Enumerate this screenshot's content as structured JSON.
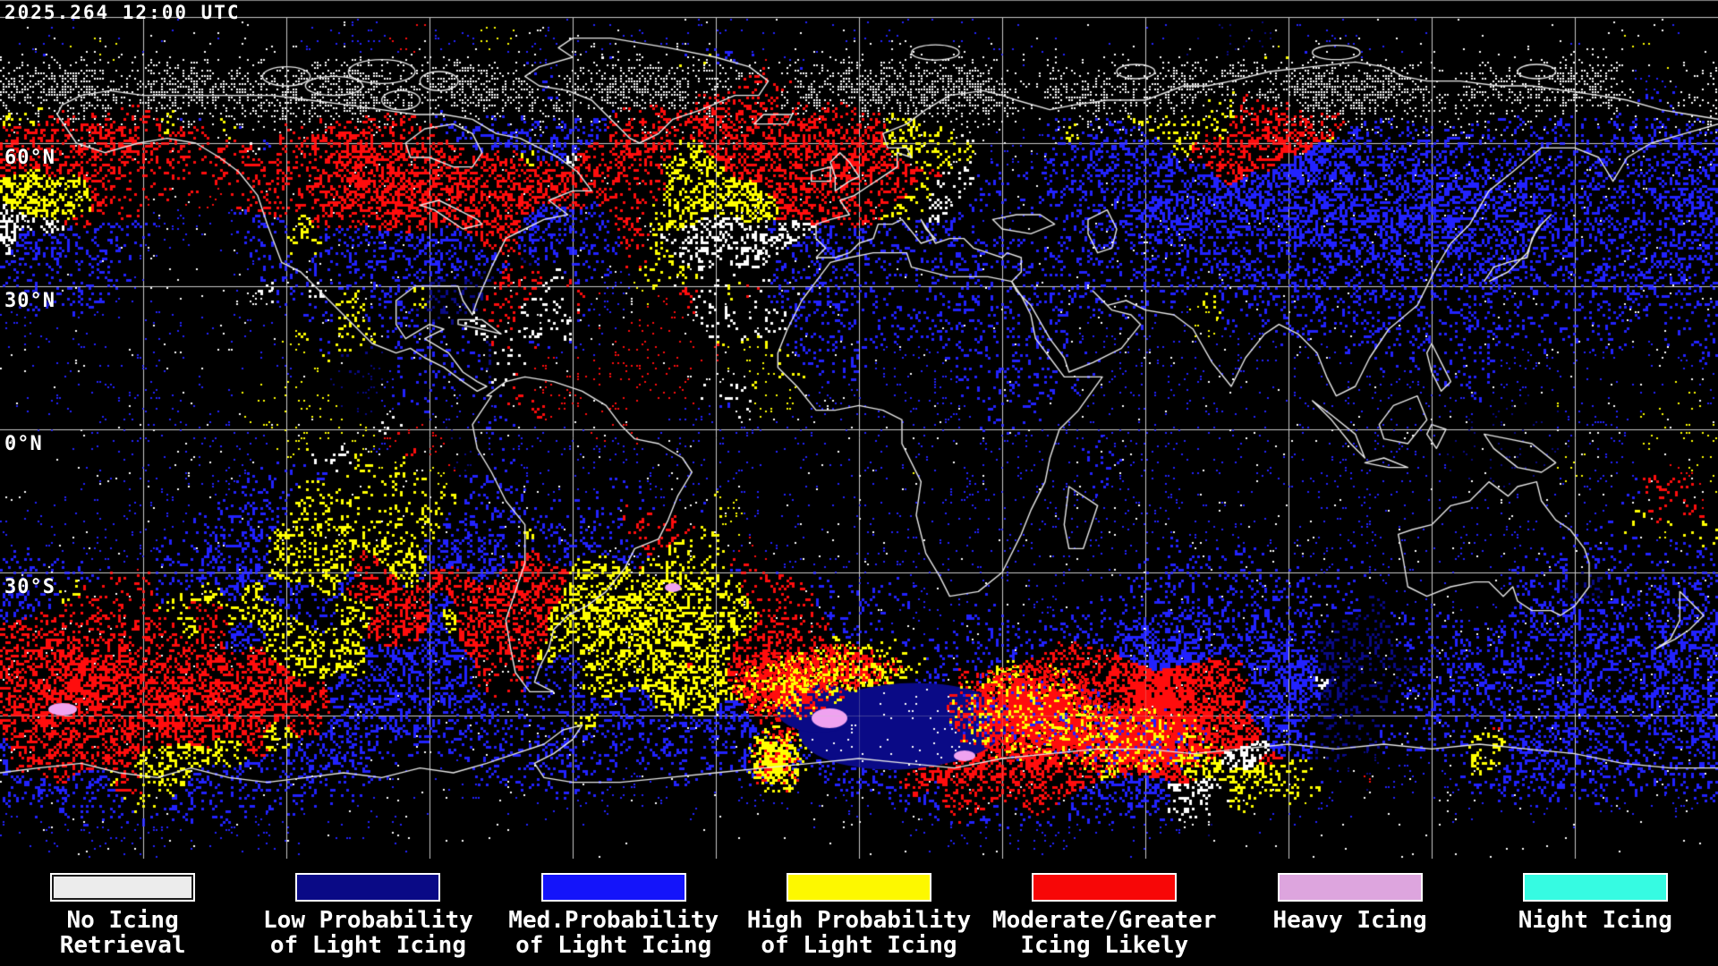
{
  "header": {
    "timestamp": "2025.264 12:00 UTC"
  },
  "map": {
    "projection": "equirectangular world map",
    "latitude_labels": [
      {
        "label": "60°N"
      },
      {
        "label": "30°N"
      },
      {
        "label": "0°N"
      },
      {
        "label": "30°S"
      }
    ],
    "grid": {
      "lon_step_deg": 30,
      "lat_step_deg": 30,
      "color": "#c8c8c8"
    },
    "colors": {
      "background": "#000000",
      "grid": "#c8c8c8",
      "coastline": "#e8e8e8",
      "speckle_white": "#ffffff",
      "speckle_navy": "#0a0a86",
      "speckle_blue": "#2222ff",
      "speckle_yellow": "#ffff00",
      "speckle_red": "#ff0d0d",
      "speckle_plum": "#f0a2f0"
    }
  },
  "legend": {
    "items": [
      {
        "id": "no-icing-retrieval",
        "line1": "No Icing",
        "line2": "Retrieval",
        "color": "#ececec",
        "border": "#ffffff",
        "inner_outline": "#1a1a1a"
      },
      {
        "id": "low-prob-light-icing",
        "line1": "Low Probability",
        "line2": "of Light Icing",
        "color": "#0a0a86",
        "border": "#ffffff"
      },
      {
        "id": "med-prob-light-icing",
        "line1": "Med.Probability",
        "line2": "of Light Icing",
        "color": "#1414fa",
        "border": "#ffffff"
      },
      {
        "id": "high-prob-light-icing",
        "line1": "High Probability",
        "line2": "of Light Icing",
        "color": "#fdf800",
        "border": "#ffffff"
      },
      {
        "id": "moderate-greater-icing",
        "line1": "Moderate/Greater",
        "line2": "Icing Likely",
        "color": "#f70707",
        "border": "#ffffff"
      },
      {
        "id": "heavy-icing",
        "line1": "Heavy Icing",
        "line2": "",
        "color": "#dda5de",
        "border": "#ffffff"
      },
      {
        "id": "night-icing",
        "line1": "Night Icing",
        "line2": "",
        "color": "#36fbe2",
        "border": "#ffffff"
      }
    ]
  }
}
